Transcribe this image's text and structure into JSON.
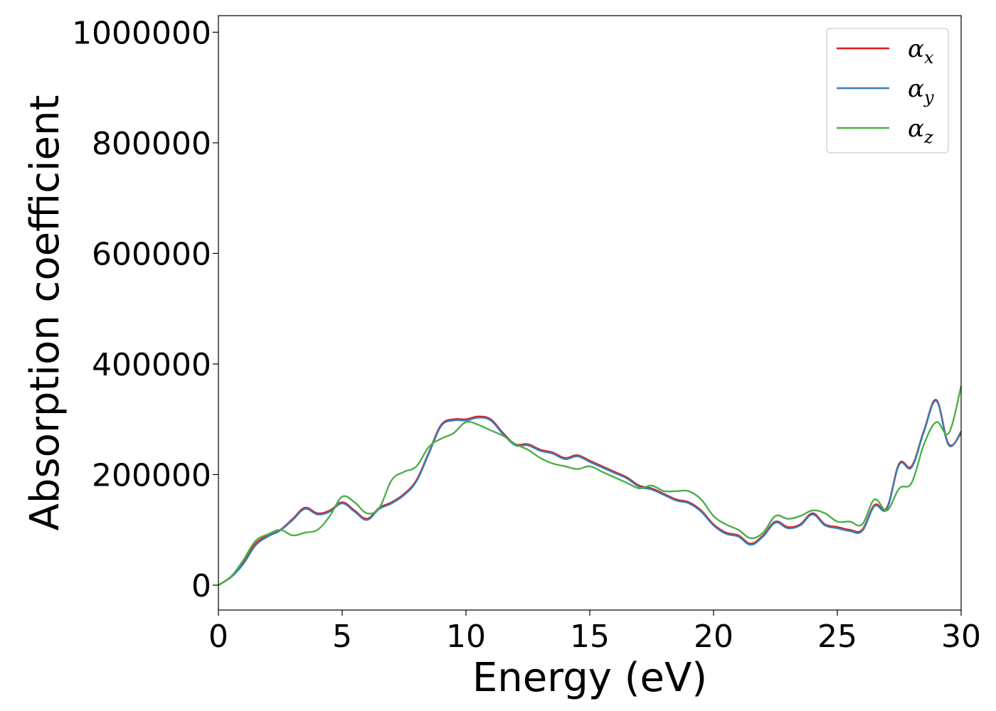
{
  "chart_data": {
    "type": "line",
    "title": "",
    "xlabel": "Energy (eV)",
    "ylabel": "Absorption coefficient",
    "xlim": [
      0,
      30
    ],
    "ylim": [
      -45000,
      1030000
    ],
    "xticks": [
      0,
      5,
      10,
      15,
      20,
      25,
      30
    ],
    "xtick_labels": [
      "0",
      "5",
      "10",
      "15",
      "20",
      "25",
      "30"
    ],
    "yticks": [
      0,
      200000,
      400000,
      600000,
      800000,
      1000000
    ],
    "ytick_labels": [
      "0",
      "200000",
      "400000",
      "600000",
      "800000",
      "1000000"
    ],
    "grid": false,
    "legend_position": "top-right",
    "series": [
      {
        "name": "α_x",
        "legend_base": "α",
        "legend_sub": "x",
        "color": "#e41a1c",
        "x": [
          0,
          0.5,
          1,
          1.5,
          2,
          2.5,
          3,
          3.5,
          4,
          4.5,
          5,
          5.5,
          6,
          6.5,
          7,
          7.5,
          8,
          8.5,
          9,
          9.5,
          10,
          10.5,
          11,
          11.5,
          12,
          12.5,
          13,
          13.5,
          14,
          14.5,
          15,
          15.5,
          16,
          16.5,
          17,
          17.5,
          18,
          18.5,
          19,
          19.5,
          20,
          20.5,
          21,
          21.5,
          22,
          22.5,
          23,
          23.5,
          24,
          24.5,
          25,
          25.5,
          26,
          26.5,
          27,
          27.5,
          28,
          28.5,
          29,
          29.5,
          30
        ],
        "values": [
          0,
          15000,
          40000,
          75000,
          90000,
          100000,
          120000,
          140000,
          130000,
          135000,
          150000,
          135000,
          120000,
          140000,
          150000,
          165000,
          190000,
          240000,
          290000,
          300000,
          300000,
          305000,
          300000,
          275000,
          255000,
          255000,
          245000,
          240000,
          230000,
          235000,
          225000,
          215000,
          205000,
          195000,
          180000,
          175000,
          165000,
          155000,
          150000,
          135000,
          110000,
          95000,
          90000,
          75000,
          90000,
          115000,
          105000,
          110000,
          130000,
          110000,
          105000,
          100000,
          100000,
          145000,
          140000,
          220000,
          215000,
          280000,
          335000,
          255000,
          275000
        ]
      },
      {
        "name": "α_y",
        "legend_base": "α",
        "legend_sub": "y",
        "color": "#377eb8",
        "x": [
          0,
          0.5,
          1,
          1.5,
          2,
          2.5,
          3,
          3.5,
          4,
          4.5,
          5,
          5.5,
          6,
          6.5,
          7,
          7.5,
          8,
          8.5,
          9,
          9.5,
          10,
          10.5,
          11,
          11.5,
          12,
          12.5,
          13,
          13.5,
          14,
          14.5,
          15,
          15.5,
          16,
          16.5,
          17,
          17.5,
          18,
          18.5,
          19,
          19.5,
          20,
          20.5,
          21,
          21.5,
          22,
          22.5,
          23,
          23.5,
          24,
          24.5,
          25,
          25.5,
          26,
          26.5,
          27,
          27.5,
          28,
          28.5,
          29,
          29.5,
          30
        ],
        "values": [
          0,
          14000,
          38000,
          72000,
          88000,
          99000,
          118000,
          138000,
          128000,
          133000,
          148000,
          133000,
          118000,
          138000,
          148000,
          163000,
          188000,
          238000,
          288000,
          298000,
          298000,
          303000,
          298000,
          273000,
          253000,
          253000,
          243000,
          238000,
          228000,
          233000,
          223000,
          213000,
          203000,
          193000,
          178000,
          173000,
          163000,
          153000,
          148000,
          133000,
          108000,
          93000,
          88000,
          73000,
          88000,
          113000,
          103000,
          108000,
          128000,
          108000,
          103000,
          98000,
          98000,
          143000,
          138000,
          218000,
          213000,
          278000,
          333000,
          253000,
          278000
        ]
      },
      {
        "name": "α_z",
        "legend_base": "α",
        "legend_sub": "z",
        "color": "#4daf4a",
        "x": [
          0,
          0.5,
          1,
          1.5,
          2,
          2.5,
          3,
          3.5,
          4,
          4.5,
          5,
          5.5,
          6,
          6.5,
          7,
          7.5,
          8,
          8.5,
          9,
          9.5,
          10,
          10.5,
          11,
          11.5,
          12,
          12.5,
          13,
          13.5,
          14,
          14.5,
          15,
          15.5,
          16,
          16.5,
          17,
          17.5,
          18,
          18.5,
          19,
          19.5,
          20,
          20.5,
          21,
          21.5,
          22,
          22.5,
          23,
          23.5,
          24,
          24.5,
          25,
          25.5,
          26,
          26.5,
          27,
          27.5,
          28,
          28.5,
          29,
          29.5,
          30
        ],
        "values": [
          0,
          15000,
          45000,
          80000,
          92000,
          100000,
          90000,
          95000,
          100000,
          125000,
          160000,
          150000,
          130000,
          140000,
          190000,
          205000,
          215000,
          250000,
          265000,
          275000,
          295000,
          290000,
          280000,
          270000,
          255000,
          245000,
          230000,
          220000,
          215000,
          210000,
          215000,
          205000,
          195000,
          185000,
          175000,
          180000,
          170000,
          170000,
          170000,
          155000,
          125000,
          110000,
          100000,
          85000,
          95000,
          125000,
          120000,
          125000,
          135000,
          130000,
          115000,
          115000,
          110000,
          155000,
          135000,
          175000,
          185000,
          255000,
          295000,
          275000,
          360000
        ]
      }
    ]
  }
}
